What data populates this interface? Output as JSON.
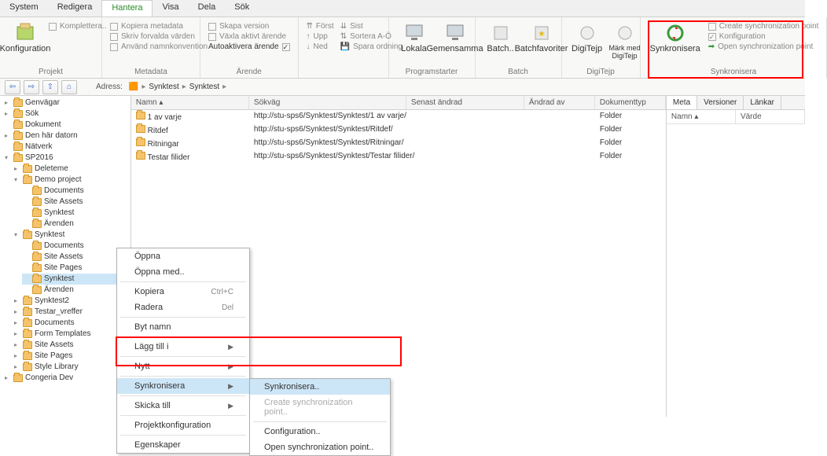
{
  "menubar": {
    "tabs": [
      "System",
      "Redigera",
      "Hantera",
      "Visa",
      "Dela",
      "Sök"
    ],
    "active": 2
  },
  "ribbon": {
    "groups": [
      {
        "label": "Projekt",
        "big": [
          {
            "name": "konfiguration",
            "label": "Konfiguration"
          }
        ],
        "small": [
          {
            "label": "Komplettera..",
            "checked": false
          }
        ]
      },
      {
        "label": "Metadata",
        "small": [
          {
            "label": "Kopiera metadata",
            "checked": false
          },
          {
            "label": "Skriv forvalda värden",
            "checked": false
          },
          {
            "label": "Använd namnkonvention",
            "checked": false
          }
        ]
      },
      {
        "label": "Ärende",
        "small": [
          {
            "label": "Skapa version",
            "checked": false
          },
          {
            "label": "Växla aktivt ärende",
            "checked": false
          },
          {
            "label": "Autoaktivera ärende",
            "checked": true
          }
        ]
      },
      {
        "label": " ",
        "small2": [
          {
            "label": "Först"
          },
          {
            "label": "Upp"
          },
          {
            "label": "Ned"
          }
        ],
        "small3": [
          {
            "label": "Sist"
          },
          {
            "label": "Sortera A-Ö"
          },
          {
            "label": "Spara ordning"
          }
        ]
      },
      {
        "label": "Programstarter",
        "big": [
          {
            "name": "lokala",
            "label": "Lokala"
          },
          {
            "name": "gemensamma",
            "label": "Gemensamma"
          }
        ]
      },
      {
        "label": "Batch",
        "big": [
          {
            "name": "batch",
            "label": "Batch.."
          },
          {
            "name": "batchfav",
            "label": "Batchfavoriter"
          }
        ]
      },
      {
        "label": "DigiTejp",
        "big": [
          {
            "name": "digitejp",
            "label": "DigiTejp"
          },
          {
            "name": "markmed",
            "label": "Märk med\nDigiTejp"
          }
        ]
      },
      {
        "label": "Synkronisera",
        "big": [
          {
            "name": "synkronisera",
            "label": "Synkronisera"
          }
        ],
        "small": [
          {
            "label": "Create synchronization point",
            "checked": false
          },
          {
            "label": "Konfiguration",
            "checked": true
          },
          {
            "label": "Open synchronization point",
            "icon": "arrow"
          }
        ]
      }
    ]
  },
  "nav": {
    "address_label": "Adress:",
    "crumbs": [
      "Synktest",
      "Synktest"
    ]
  },
  "tree": {
    "roots": [
      {
        "label": "Genvägar",
        "exp": "▸"
      },
      {
        "label": "Sök",
        "exp": "▸"
      },
      {
        "label": "Dokument",
        "exp": ""
      },
      {
        "label": "Den här datorn",
        "exp": "▸"
      },
      {
        "label": "Nätverk",
        "exp": ""
      },
      {
        "label": "SP2016",
        "exp": "▾",
        "children": [
          {
            "label": "Deleteme",
            "exp": "▸"
          },
          {
            "label": "Demo project",
            "exp": "▾",
            "children": [
              {
                "label": "Documents"
              },
              {
                "label": "Site Assets"
              },
              {
                "label": "Synktest"
              },
              {
                "label": "Ärenden"
              }
            ]
          },
          {
            "label": "Synktest",
            "exp": "▾",
            "children": [
              {
                "label": "Documents"
              },
              {
                "label": "Site Assets"
              },
              {
                "label": "Site Pages"
              },
              {
                "label": "Synktest",
                "selected": true
              },
              {
                "label": "Ärenden"
              }
            ]
          },
          {
            "label": "Synktest2",
            "exp": "▸"
          },
          {
            "label": "Testar_vreffer",
            "exp": "▸"
          },
          {
            "label": "Documents",
            "exp": "▸"
          },
          {
            "label": "Form Templates",
            "exp": "▸"
          },
          {
            "label": "Site Assets",
            "exp": "▸"
          },
          {
            "label": "Site Pages",
            "exp": "▸"
          },
          {
            "label": "Style Library",
            "exp": "▸"
          }
        ]
      },
      {
        "label": "Congeria Dev",
        "exp": "▸"
      }
    ]
  },
  "list": {
    "columns": [
      "Namn  ▴",
      "Sökväg",
      "Senast ändrad",
      "Ändrad av",
      "Dokumenttyp"
    ],
    "rows": [
      {
        "name": "1 av varje",
        "path": "http://stu-sps6/Synktest/Synktest/1 av varje/",
        "type": "Folder"
      },
      {
        "name": "Ritdef",
        "path": "http://stu-sps6/Synktest/Synktest/Ritdef/",
        "type": "Folder"
      },
      {
        "name": "Ritningar",
        "path": "http://stu-sps6/Synktest/Synktest/Ritningar/",
        "type": "Folder"
      },
      {
        "name": "Testar filider",
        "path": "http://stu-sps6/Synktest/Synktest/Testar filider/",
        "type": "Folder"
      }
    ]
  },
  "props": {
    "tabs": [
      "Meta",
      "Versioner",
      "Länkar"
    ],
    "columns": [
      "Namn  ▴",
      "Värde"
    ]
  },
  "context_menu": {
    "items": [
      {
        "label": "Öppna"
      },
      {
        "label": "Öppna med.."
      },
      {
        "sep": true
      },
      {
        "label": "Kopiera",
        "shortcut": "Ctrl+C"
      },
      {
        "label": "Radera",
        "shortcut": "Del"
      },
      {
        "sep": true
      },
      {
        "label": "Byt namn"
      },
      {
        "sep": true
      },
      {
        "label": "Lägg till i",
        "sub": true
      },
      {
        "sep": true
      },
      {
        "label": "Nytt",
        "sub": true
      },
      {
        "sep": true
      },
      {
        "label": "Synkronisera",
        "sub": true,
        "highlight": true,
        "submenu": [
          {
            "label": "Synkronisera..",
            "hl": true
          },
          {
            "label": "Create synchronization point..",
            "dim": true
          },
          {
            "sep": true
          },
          {
            "label": "Configuration.."
          },
          {
            "label": "Open synchronization point.."
          }
        ]
      },
      {
        "sep": true
      },
      {
        "label": "Skicka till",
        "sub": true
      },
      {
        "sep": true
      },
      {
        "label": "Projektkonfiguration"
      },
      {
        "sep": true
      },
      {
        "label": "Egenskaper"
      }
    ]
  },
  "styles": {
    "highlight_red": "#ff0000",
    "selection_bg": "#cde6f7"
  }
}
